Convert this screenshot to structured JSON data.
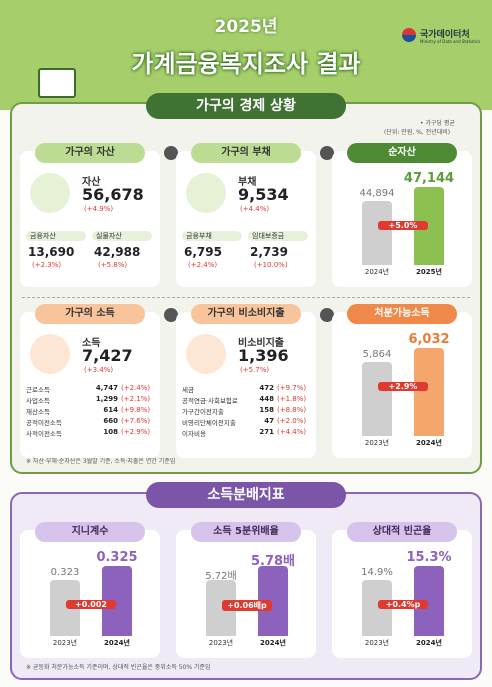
{
  "header": {
    "year": "2025년",
    "title": "가계금융복지조사 결과",
    "logo": "국가데이터처",
    "logo_en": "Ministry of Data and Statistics"
  },
  "economy": {
    "title": "가구의 경제 상황",
    "notes": [
      "• 가구당 평균",
      "(단위: 만원, %, 전년대비)"
    ],
    "cards": [
      {
        "title": "가구의 자산",
        "label": "자산",
        "value": "56,678",
        "change": "(+4.9%)",
        "subs": [
          {
            "label": "금융자산",
            "value": "13,690",
            "change": "(+2.3%)"
          },
          {
            "label": "실물자산",
            "value": "42,988",
            "change": "(+5.8%)"
          }
        ]
      },
      {
        "title": "가구의 부채",
        "label": "부채",
        "value": "9,534",
        "change": "(+4.4%)",
        "subs": [
          {
            "label": "금융부채",
            "value": "6,795",
            "change": "(+2.4%)"
          },
          {
            "label": "임대보증금",
            "value": "2,739",
            "change": "(+10.0%)"
          }
        ]
      },
      {
        "title": "가구의 소득",
        "label": "소득",
        "value": "7,427",
        "change": "(+3.4%)",
        "items": [
          {
            "label": "근로소득",
            "value": "4,747",
            "change": "(+2.4%)"
          },
          {
            "label": "사업소득",
            "value": "1,299",
            "change": "(+2.1%)"
          },
          {
            "label": "재산소득",
            "value": "614",
            "change": "(+9.8%)"
          },
          {
            "label": "공적이전소득",
            "value": "660",
            "change": "(+7.6%)"
          },
          {
            "label": "사적이전소득",
            "value": "108",
            "change": "(+2.9%)"
          }
        ]
      },
      {
        "title": "가구의 비소비지출",
        "label": "비소비지출",
        "value": "1,396",
        "change": "(+5.7%)",
        "items": [
          {
            "label": "세금",
            "value": "472",
            "change": "(+9.7%)"
          },
          {
            "label": "공적연금·사회보험료",
            "value": "448",
            "change": "(+1.8%)"
          },
          {
            "label": "가구간이전지출",
            "value": "158",
            "change": "(+8.8%)"
          },
          {
            "label": "비영리단체이전지출",
            "value": "47",
            "change": "(+2.0%)"
          },
          {
            "label": "이자비용",
            "value": "271",
            "change": "(+4.4%)"
          }
        ]
      }
    ],
    "results": [
      {
        "title": "순자산",
        "before": "44,894",
        "after": "47,144",
        "change": "+5.0%",
        "years": [
          "2024년",
          "2025년"
        ]
      },
      {
        "title": "처분가능소득",
        "before": "5,864",
        "after": "6,032",
        "change": "+2.9%",
        "years": [
          "2023년",
          "2024년"
        ]
      }
    ],
    "footnote": "※ 자산·부채·순자산은 3월말 기준, 소득·지출은 연간 기준임"
  },
  "distribution": {
    "title": "소득분배지표",
    "cards": [
      {
        "title": "지니계수",
        "before": "0.323",
        "after": "0.325",
        "change": "+0.002",
        "years": [
          "2023년",
          "2024년"
        ]
      },
      {
        "title": "소득 5분위배율",
        "before": "5.72배",
        "after": "5.78배",
        "change": "+0.06배p",
        "years": [
          "2023년",
          "2024년"
        ]
      },
      {
        "title": "상대적 빈곤율",
        "before": "14.9%",
        "after": "15.3%",
        "change": "+0.4%p",
        "years": [
          "2023년",
          "2024년"
        ]
      }
    ],
    "footnote": "※ 균등화 처분가능소득 기준이며, 상대적 빈곤율은 중위소득 50% 기준임"
  }
}
